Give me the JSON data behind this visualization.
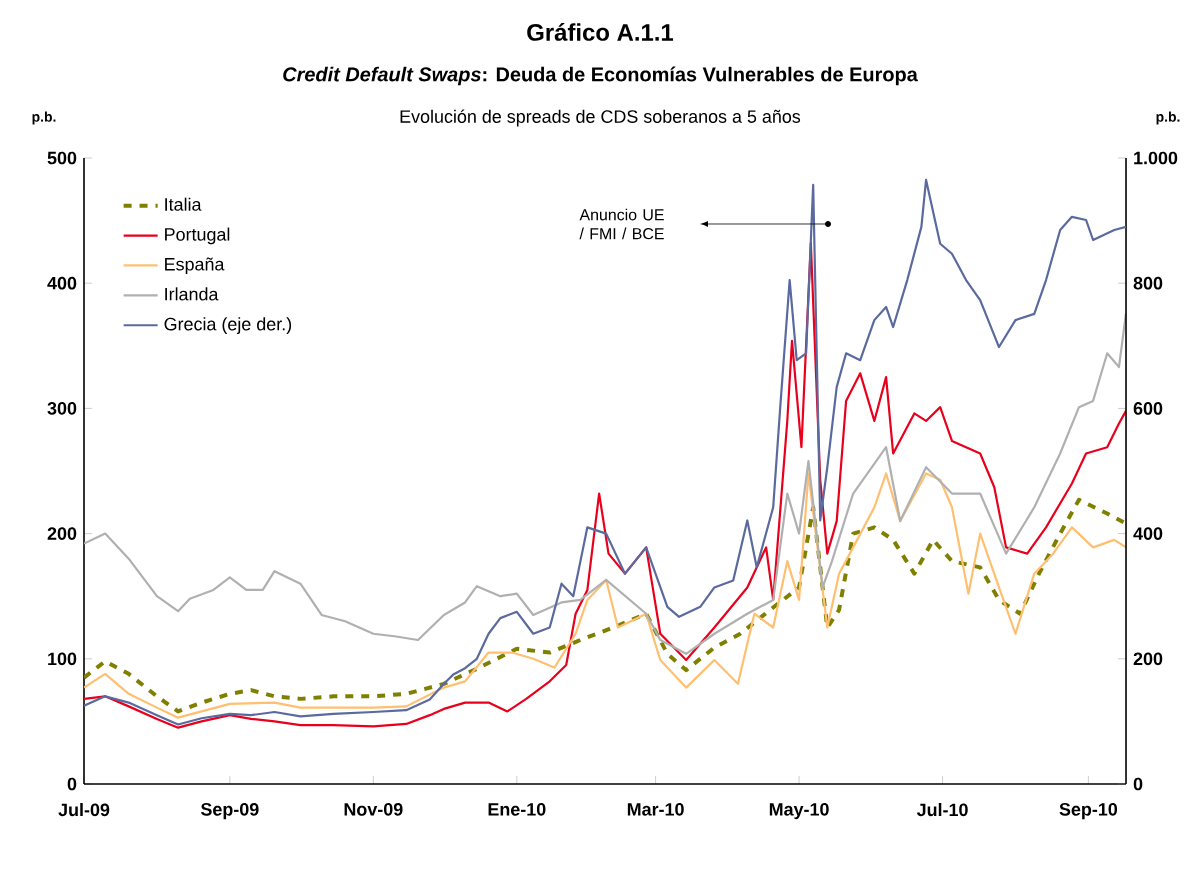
{
  "chart_data": {
    "type": "line",
    "title": "Gráfico A.1.1",
    "subtitle": "*Credit Default Swaps*: Deuda de Economías Vulnerables de Europa",
    "annotations": [
      "Evolución de spreads de CDS soberanos a 5 años",
      "Anuncio UE / FMI / BCE"
    ],
    "ylabel": "p.b.",
    "y2label": "p.b.",
    "xlim": [
      "2009-07-01",
      "2010-09-17"
    ],
    "xticks": [
      {
        "value": "2009-07-01",
        "label": "Jul-09"
      },
      {
        "value": "2009-09-01",
        "label": "Sep-09"
      },
      {
        "value": "2009-11-01",
        "label": "Nov-09"
      },
      {
        "value": "2010-01-01",
        "label": "Ene-10"
      },
      {
        "value": "2010-03-01",
        "label": "Mar-10"
      },
      {
        "value": "2010-05-01",
        "label": "May-10"
      },
      {
        "value": "2010-07-01",
        "label": "Jul-10"
      },
      {
        "value": "2010-09-01",
        "label": "Sep-10"
      }
    ],
    "ylim": [
      0,
      500
    ],
    "yticks": [
      0,
      100,
      200,
      300,
      400,
      500
    ],
    "y2lim": [
      0,
      1000
    ],
    "y2ticks": [
      0,
      200,
      400,
      600,
      800,
      {
        "value": 1000,
        "label": "1.000"
      }
    ],
    "legend": "top left",
    "grid": false,
    "series": [
      {
        "name": "Italia",
        "color": "#7f7f00",
        "line_style": "dashed",
        "x": [
          "2009-07-01",
          "2009-07-10",
          "2009-07-20",
          "2009-08-01",
          "2009-08-10",
          "2009-08-20",
          "2009-09-01",
          "2009-09-10",
          "2009-09-20",
          "2009-10-01",
          "2009-10-15",
          "2009-11-01",
          "2009-11-15",
          "2009-12-01",
          "2009-12-15",
          "2010-01-01",
          "2010-01-15",
          "2010-01-28",
          "2010-02-11",
          "2010-02-25",
          "2010-03-06",
          "2010-03-14",
          "2010-03-26",
          "2010-04-06",
          "2010-04-20",
          "2010-05-01",
          "2010-05-07",
          "2010-05-13",
          "2010-05-18",
          "2010-05-24",
          "2010-06-02",
          "2010-06-10",
          "2010-06-19",
          "2010-06-27",
          "2010-07-05",
          "2010-07-17",
          "2010-07-25",
          "2010-08-03",
          "2010-08-11",
          "2010-08-20",
          "2010-08-28",
          "2010-09-09",
          "2010-09-17"
        ],
        "values": [
          85,
          98,
          88,
          70,
          58,
          65,
          72,
          75,
          70,
          68,
          70,
          70,
          72,
          80,
          92,
          108,
          105,
          115,
          125,
          136,
          104,
          91,
          109,
          120,
          141,
          157,
          221,
          125,
          139,
          200,
          205,
          195,
          168,
          195,
          178,
          173,
          147,
          136,
          168,
          200,
          227,
          216,
          208
        ]
      },
      {
        "name": "Portugal",
        "color": "#e8001c",
        "x": [
          "2009-07-01",
          "2009-07-10",
          "2009-07-20",
          "2009-08-01",
          "2009-08-10",
          "2009-08-20",
          "2009-09-01",
          "2009-09-10",
          "2009-09-20",
          "2009-10-01",
          "2009-10-15",
          "2009-11-01",
          "2009-11-15",
          "2009-11-25",
          "2009-12-01",
          "2009-12-10",
          "2009-12-20",
          "2009-12-28",
          "2010-01-05",
          "2010-01-15",
          "2010-01-22",
          "2010-01-26",
          "2010-01-31",
          "2010-02-05",
          "2010-02-09",
          "2010-02-16",
          "2010-02-25",
          "2010-03-03",
          "2010-03-14",
          "2010-03-26",
          "2010-04-09",
          "2010-04-17",
          "2010-04-20",
          "2010-04-26",
          "2010-04-28",
          "2010-05-02",
          "2010-05-06",
          "2010-05-10",
          "2010-05-13",
          "2010-05-17",
          "2010-05-21",
          "2010-05-27",
          "2010-06-02",
          "2010-06-07",
          "2010-06-10",
          "2010-06-19",
          "2010-06-24",
          "2010-06-30",
          "2010-07-05",
          "2010-07-17",
          "2010-07-23",
          "2010-07-28",
          "2010-08-06",
          "2010-08-14",
          "2010-08-25",
          "2010-08-31",
          "2010-09-09",
          "2010-09-14",
          "2010-09-17"
        ],
        "values": [
          68,
          70,
          62,
          52,
          45,
          50,
          55,
          52,
          50,
          47,
          47,
          46,
          48,
          55,
          60,
          65,
          65,
          58,
          68,
          82,
          95,
          136,
          155,
          232,
          184,
          168,
          189,
          120,
          99,
          125,
          157,
          189,
          147,
          290,
          354,
          269,
          432,
          243,
          184,
          210,
          306,
          328,
          290,
          325,
          264,
          296,
          290,
          301,
          274,
          264,
          237,
          189,
          184,
          205,
          240,
          264,
          269,
          288,
          298
        ]
      },
      {
        "name": "España",
        "color": "#ffbf70",
        "x": [
          "2009-07-01",
          "2009-07-10",
          "2009-07-20",
          "2009-08-01",
          "2009-08-10",
          "2009-09-01",
          "2009-09-20",
          "2009-10-01",
          "2009-11-01",
          "2009-11-15",
          "2009-12-01",
          "2009-12-10",
          "2009-12-20",
          "2009-12-30",
          "2010-01-08",
          "2010-01-17",
          "2010-01-26",
          "2010-01-31",
          "2010-02-08",
          "2010-02-13",
          "2010-02-25",
          "2010-03-03",
          "2010-03-14",
          "2010-03-26",
          "2010-04-05",
          "2010-04-12",
          "2010-04-20",
          "2010-04-26",
          "2010-05-01",
          "2010-05-05",
          "2010-05-13",
          "2010-05-18",
          "2010-05-24",
          "2010-06-02",
          "2010-06-07",
          "2010-06-13",
          "2010-06-24",
          "2010-06-30",
          "2010-07-05",
          "2010-07-12",
          "2010-07-17",
          "2010-07-25",
          "2010-08-01",
          "2010-08-09",
          "2010-08-17",
          "2010-08-25",
          "2010-09-03",
          "2010-09-12",
          "2010-09-17"
        ],
        "values": [
          77,
          88,
          72,
          61,
          53,
          64,
          65,
          61,
          61,
          62,
          77,
          82,
          105,
          105,
          100,
          93,
          120,
          147,
          163,
          125,
          136,
          99,
          77,
          99,
          80,
          136,
          125,
          178,
          147,
          248,
          125,
          168,
          189,
          221,
          248,
          210,
          248,
          243,
          221,
          152,
          200,
          157,
          120,
          168,
          184,
          205,
          189,
          195,
          189
        ]
      },
      {
        "name": "Irlanda",
        "color": "#b0b0b0",
        "x": [
          "2009-07-01",
          "2009-07-10",
          "2009-07-20",
          "2009-08-01",
          "2009-08-10",
          "2009-08-15",
          "2009-08-25",
          "2009-09-01",
          "2009-09-08",
          "2009-09-15",
          "2009-09-20",
          "2009-10-01",
          "2009-10-10",
          "2009-10-20",
          "2009-11-01",
          "2009-11-10",
          "2009-11-20",
          "2009-12-01",
          "2009-12-10",
          "2009-12-15",
          "2009-12-25",
          "2010-01-01",
          "2010-01-08",
          "2010-01-20",
          "2010-01-28",
          "2010-02-08",
          "2010-02-25",
          "2010-03-03",
          "2010-03-14",
          "2010-03-26",
          "2010-04-09",
          "2010-04-20",
          "2010-04-26",
          "2010-05-01",
          "2010-05-05",
          "2010-05-11",
          "2010-05-15",
          "2010-05-24",
          "2010-06-07",
          "2010-06-13",
          "2010-06-24",
          "2010-07-05",
          "2010-07-17",
          "2010-07-28",
          "2010-08-09",
          "2010-08-20",
          "2010-08-28",
          "2010-09-03",
          "2010-09-09",
          "2010-09-14",
          "2010-09-17"
        ],
        "values": [
          192,
          200,
          180,
          150,
          138,
          148,
          155,
          165,
          155,
          155,
          170,
          160,
          135,
          130,
          120,
          118,
          115,
          135,
          145,
          158,
          150,
          152,
          135,
          145,
          147,
          163,
          136,
          115,
          104,
          120,
          136,
          147,
          232,
          200,
          258,
          157,
          178,
          232,
          269,
          210,
          253,
          232,
          232,
          184,
          221,
          264,
          301,
          306,
          344,
          333,
          376
        ]
      },
      {
        "name": "Grecia (eje der.)",
        "color": "#5b6a9e",
        "axis": "y2",
        "x": [
          "2009-07-01",
          "2009-07-10",
          "2009-07-20",
          "2009-08-01",
          "2009-08-10",
          "2009-08-20",
          "2009-09-01",
          "2009-09-10",
          "2009-09-20",
          "2009-10-01",
          "2009-10-15",
          "2009-11-01",
          "2009-11-15",
          "2009-11-25",
          "2009-12-01",
          "2009-12-05",
          "2009-12-10",
          "2009-12-15",
          "2009-12-20",
          "2009-12-25",
          "2010-01-01",
          "2010-01-08",
          "2010-01-15",
          "2010-01-20",
          "2010-01-25",
          "2010-01-31",
          "2010-02-08",
          "2010-02-16",
          "2010-02-25",
          "2010-03-06",
          "2010-03-11",
          "2010-03-20",
          "2010-03-26",
          "2010-04-03",
          "2010-04-09",
          "2010-04-13",
          "2010-04-20",
          "2010-04-23",
          "2010-04-27",
          "2010-04-30",
          "2010-05-04",
          "2010-05-07",
          "2010-05-10",
          "2010-05-13",
          "2010-05-17",
          "2010-05-21",
          "2010-05-27",
          "2010-06-02",
          "2010-06-07",
          "2010-06-10",
          "2010-06-16",
          "2010-06-22",
          "2010-06-24",
          "2010-06-30",
          "2010-07-05",
          "2010-07-11",
          "2010-07-17",
          "2010-07-25",
          "2010-08-01",
          "2010-08-09",
          "2010-08-14",
          "2010-08-20",
          "2010-08-25",
          "2010-08-31",
          "2010-09-03",
          "2010-09-12",
          "2010-09-17"
        ],
        "values": [
          125,
          140,
          130,
          110,
          95,
          105,
          112,
          110,
          115,
          108,
          112,
          115,
          118,
          135,
          160,
          175,
          185,
          200,
          240,
          265,
          275,
          240,
          250,
          320,
          300,
          410,
          400,
          336,
          378,
          283,
          267,
          283,
          314,
          325,
          421,
          346,
          442,
          602,
          805,
          677,
          688,
          957,
          421,
          506,
          634,
          688,
          677,
          741,
          762,
          730,
          805,
          890,
          965,
          863,
          847,
          805,
          773,
          698,
          741,
          751,
          805,
          885,
          906,
          901,
          869,
          885,
          890
        ]
      }
    ]
  }
}
